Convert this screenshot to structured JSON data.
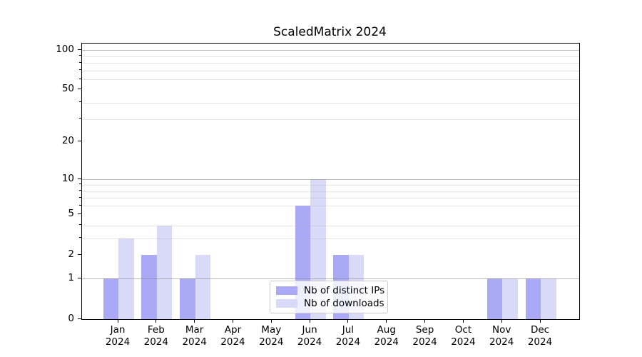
{
  "title": "ScaledMatrix 2024",
  "colors": {
    "distinct_ips_bar": "#a9a9f5",
    "downloads_bar": "#d9d9f8",
    "decade_gridline": "rgba(128,128,128,0.55)",
    "minor_gridline": "rgba(176,176,176,0.32)",
    "spine": "#000000",
    "legend_border": "#cccccc"
  },
  "chart_data": {
    "type": "bar",
    "title": "ScaledMatrix 2024",
    "categories": [
      "Jan",
      "Feb",
      "Mar",
      "Apr",
      "May",
      "Jun",
      "Jul",
      "Aug",
      "Sep",
      "Oct",
      "Nov",
      "Dec"
    ],
    "category_year": "2024",
    "series": [
      {
        "name": "Nb of distinct IPs",
        "color": "#a9a9f5",
        "values": [
          1,
          2,
          1,
          0,
          0,
          6,
          2,
          0,
          0,
          0,
          1,
          1
        ]
      },
      {
        "name": "Nb of downloads",
        "color": "#d9d9f8",
        "values": [
          3,
          4,
          2,
          0,
          0,
          10,
          2,
          0,
          0,
          0,
          1,
          1
        ]
      }
    ],
    "xlabel": "",
    "ylabel": "",
    "yscale": "log1p",
    "ylim": [
      0,
      113
    ],
    "y_tick_labels": [
      0,
      1,
      2,
      5,
      10,
      20,
      50,
      100
    ],
    "y_decade_gridlines": [
      1,
      10,
      100
    ],
    "y_minor_gridlines": [
      3,
      4,
      6,
      7,
      8,
      9,
      30,
      40,
      60,
      70,
      80,
      90
    ],
    "grid": "horizontal, drawn above bars",
    "legend_position": "lower center"
  }
}
